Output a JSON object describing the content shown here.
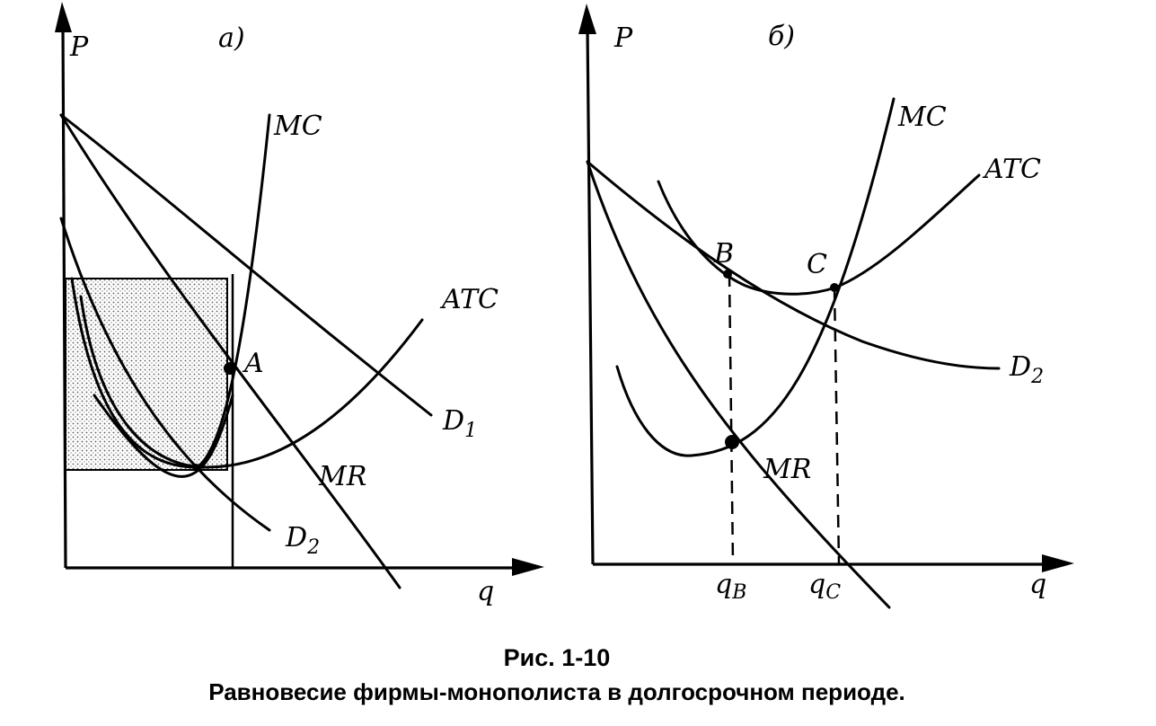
{
  "panel_a": {
    "tag": "а)",
    "axis_y": "P",
    "axis_x": "q",
    "curves": {
      "mc": "MC",
      "atc": "ATC",
      "d1": "D",
      "d1_sub": "1",
      "d2": "D",
      "d2_sub": "2",
      "mr": "MR"
    },
    "point_a": "A"
  },
  "panel_b": {
    "tag": "б)",
    "axis_y": "P",
    "axis_x": "q",
    "curves": {
      "mc": "MC",
      "atc": "ATC",
      "d2": "D",
      "d2_sub": "2",
      "mr": "MR"
    },
    "point_b": "B",
    "point_c": "C",
    "tick_qb": "q",
    "tick_qb_sub": "B",
    "tick_qc": "q",
    "tick_qc_sub": "C"
  },
  "caption": {
    "title": "Рис. 1-10",
    "text": "Равновесие фирмы-монополиста в долгосрочном периоде."
  }
}
